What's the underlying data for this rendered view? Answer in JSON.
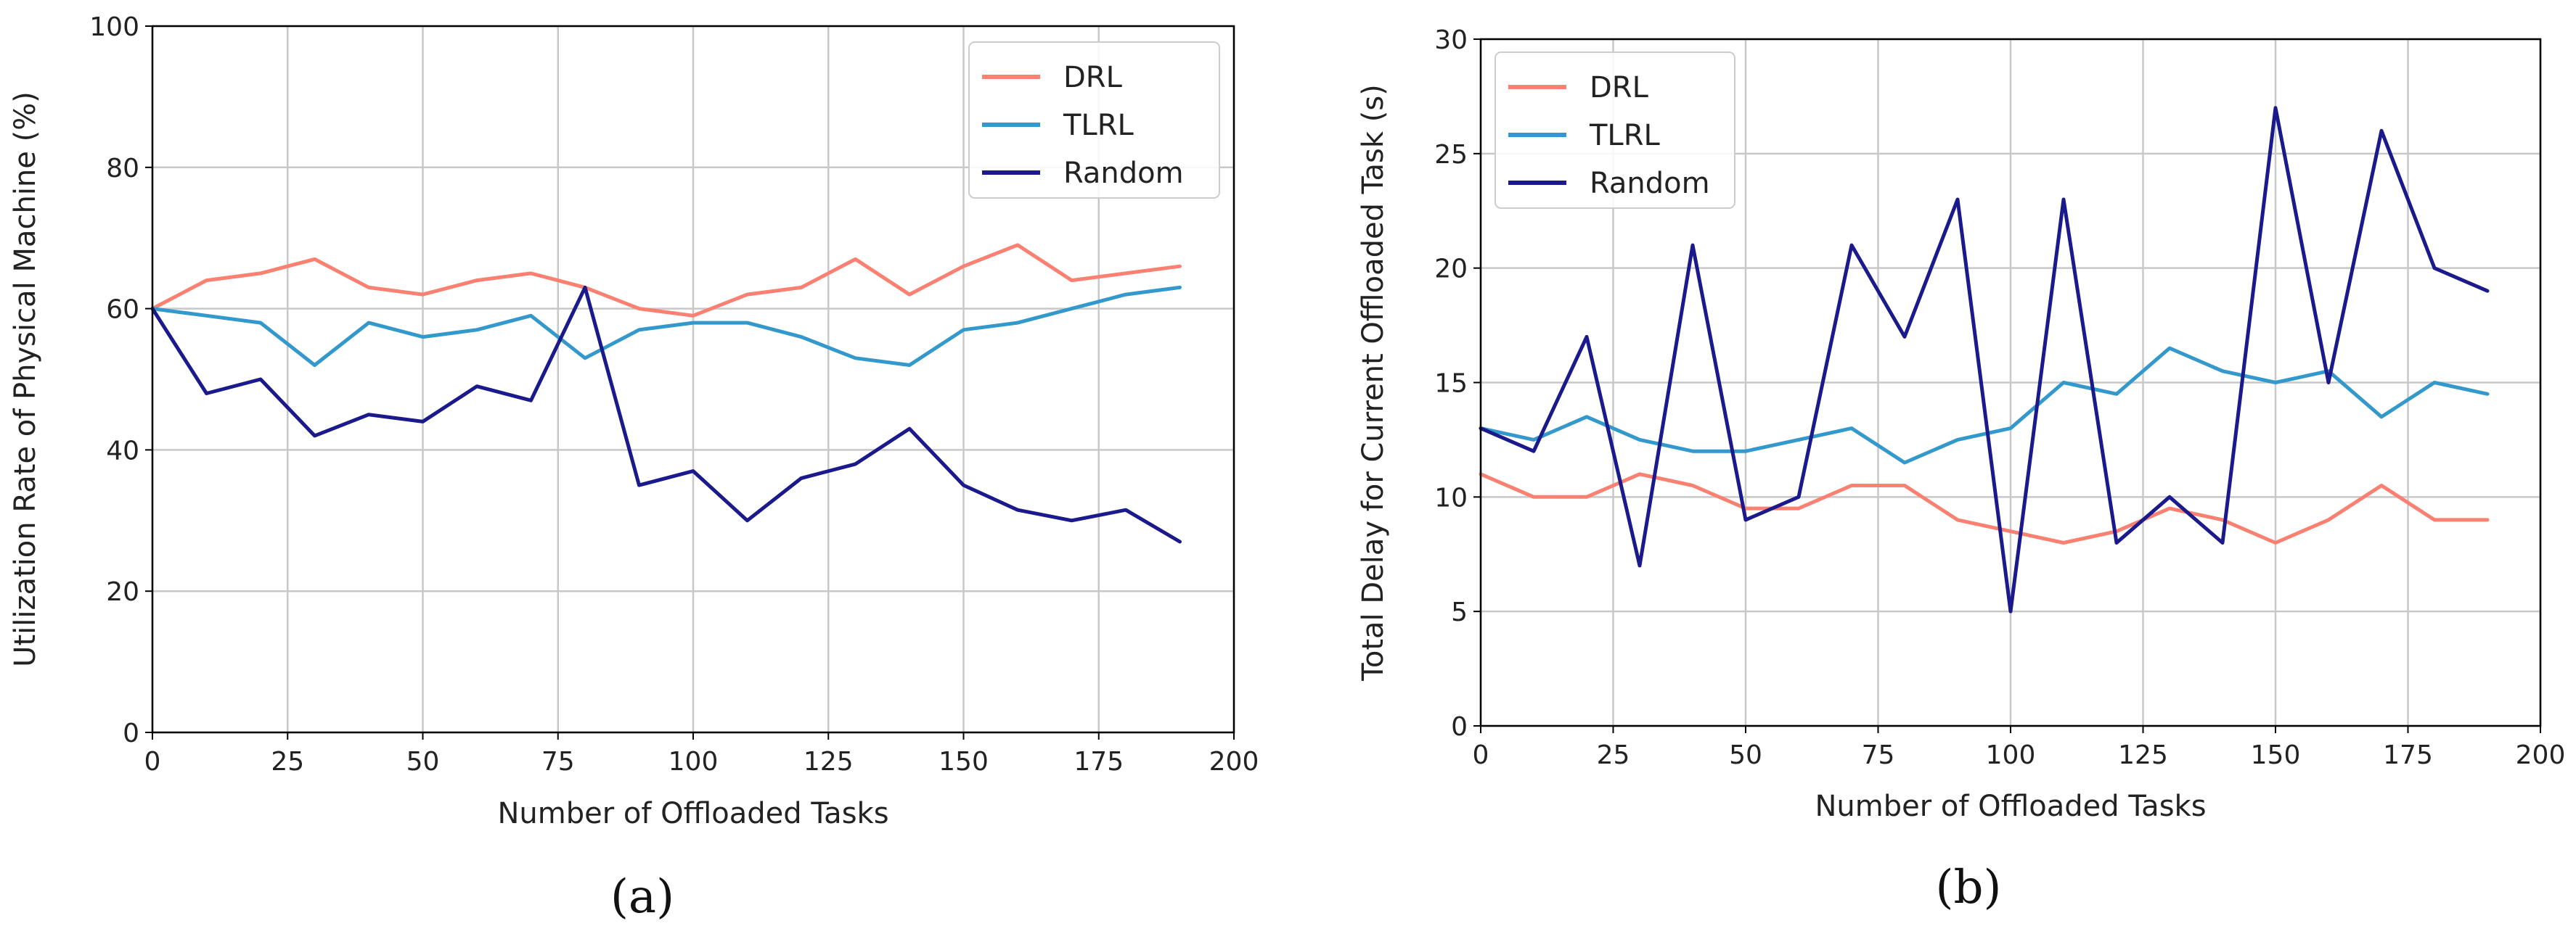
{
  "chart_data": [
    {
      "type": "line",
      "panel_label": "a",
      "title": "",
      "xlabel": "Number of Offloaded Tasks",
      "ylabel": "Utilization Rate of Physical Machine (%)",
      "xlim": [
        0,
        200
      ],
      "ylim": [
        0,
        100
      ],
      "xticks": [
        "0",
        "25",
        "50",
        "75",
        "100",
        "125",
        "150",
        "175",
        "200"
      ],
      "yticks": [
        "0",
        "20",
        "40",
        "60",
        "80",
        "100"
      ],
      "grid": true,
      "legend_position": "top-right",
      "x": [
        0,
        10,
        20,
        30,
        40,
        50,
        60,
        70,
        80,
        90,
        100,
        110,
        120,
        130,
        140,
        150,
        160,
        170,
        180,
        190
      ],
      "series": [
        {
          "name": "DRL",
          "color": "#FA8072",
          "values": [
            60,
            64,
            65,
            67,
            63,
            62,
            64,
            65,
            63,
            60,
            59,
            62,
            63,
            67,
            62,
            66,
            69,
            64,
            65,
            66
          ]
        },
        {
          "name": "TLRL",
          "color": "#3399CC",
          "values": [
            60,
            59,
            58,
            52,
            58,
            56,
            57,
            59,
            53,
            57,
            58,
            58,
            56,
            53,
            52,
            57,
            58,
            60,
            62,
            63
          ]
        },
        {
          "name": "Random",
          "color": "#1A1A8C",
          "values": [
            60,
            48,
            50,
            42,
            45,
            44,
            49,
            47,
            63,
            35,
            37,
            30,
            36,
            38,
            43,
            35,
            31.5,
            30,
            31.5,
            27
          ]
        }
      ]
    },
    {
      "type": "line",
      "panel_label": "b",
      "title": "",
      "xlabel": "Number of Offloaded Tasks",
      "ylabel": "Total Delay for Current Offloaded Task (s)",
      "xlim": [
        0,
        200
      ],
      "ylim": [
        0,
        30
      ],
      "xticks": [
        "0",
        "25",
        "50",
        "75",
        "100",
        "125",
        "150",
        "175",
        "200"
      ],
      "yticks": [
        "0",
        "5",
        "10",
        "15",
        "20",
        "25",
        "30"
      ],
      "grid": true,
      "legend_position": "top-left",
      "x": [
        0,
        10,
        20,
        30,
        40,
        50,
        60,
        70,
        80,
        90,
        100,
        110,
        120,
        130,
        140,
        150,
        160,
        170,
        180,
        190
      ],
      "series": [
        {
          "name": "DRL",
          "color": "#FA8072",
          "values": [
            11,
            10,
            10,
            11,
            10.5,
            9.5,
            9.5,
            10.5,
            10.5,
            9,
            8.5,
            8,
            8.5,
            9.5,
            9,
            8,
            9,
            10.5,
            9,
            9
          ]
        },
        {
          "name": "TLRL",
          "color": "#3399CC",
          "values": [
            13,
            12.5,
            13.5,
            12.5,
            12,
            12,
            12.5,
            13,
            11.5,
            12.5,
            13,
            15,
            14.5,
            16.5,
            15.5,
            15,
            15.5,
            13.5,
            15,
            14.5
          ]
        },
        {
          "name": "Random",
          "color": "#1A1A8C",
          "values": [
            13,
            12,
            17,
            7,
            21,
            9,
            10,
            21,
            17,
            23,
            5,
            23,
            8,
            10,
            8,
            27,
            15,
            26,
            20,
            19
          ]
        }
      ]
    }
  ],
  "captions": {
    "a": "(a)",
    "b": "(b)"
  }
}
